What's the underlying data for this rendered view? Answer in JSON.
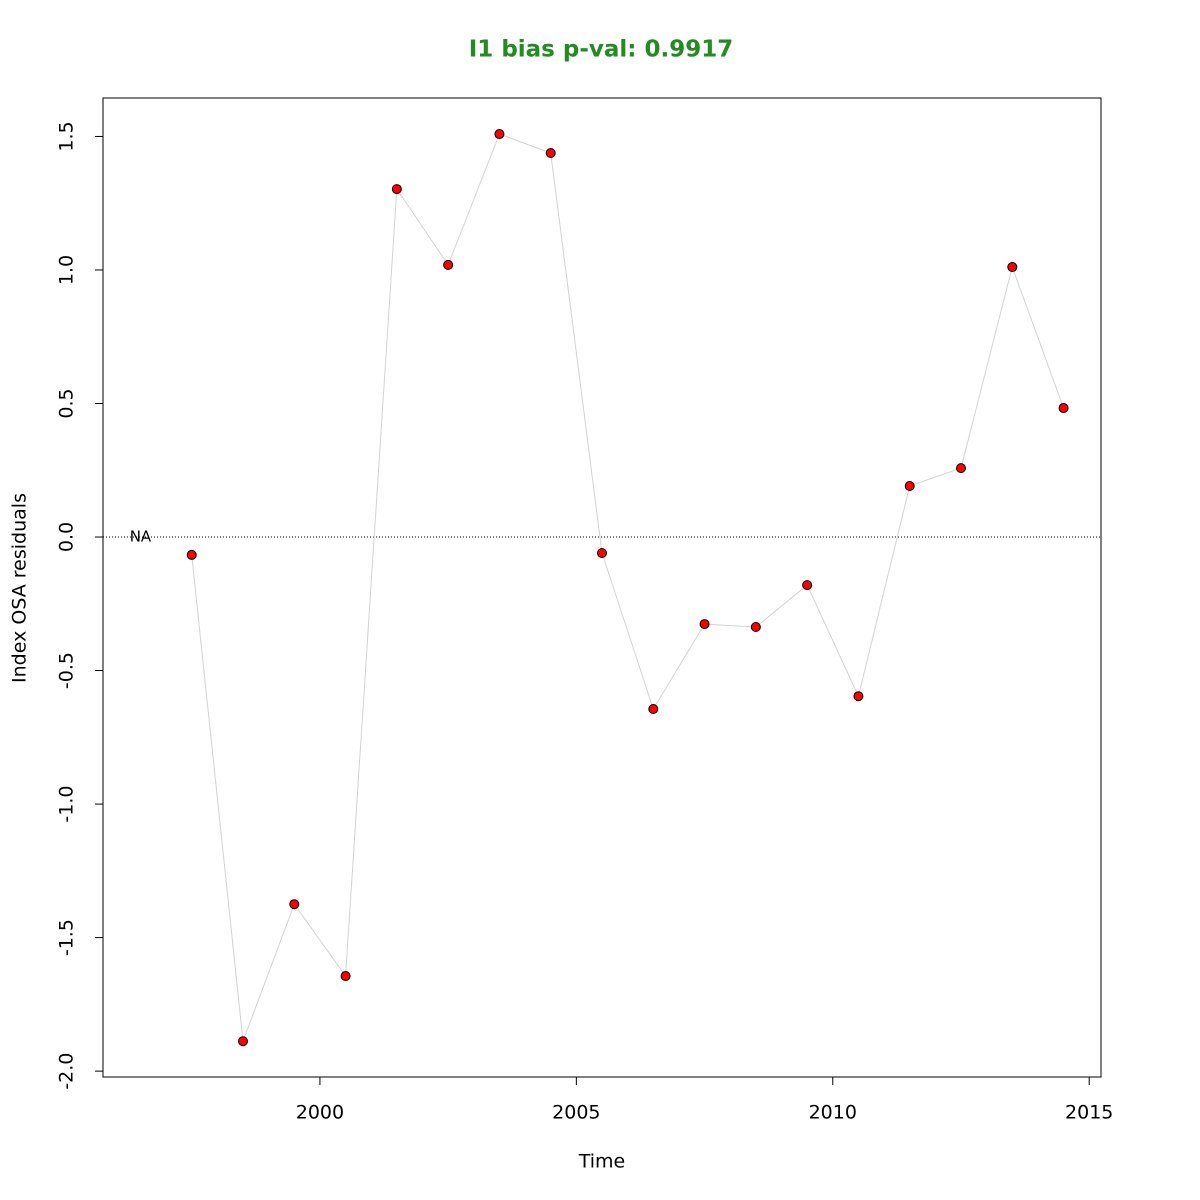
{
  "chart_data": {
    "type": "line",
    "title": "I1 bias p-val: 0.9917",
    "title_color": "#228b22",
    "x_label": "Time",
    "y_label": "Index OSA residuals",
    "x": [
      1996.5,
      1997.5,
      1998.5,
      1999.5,
      2000.5,
      2001.5,
      2002.5,
      2003.5,
      2004.5,
      2005.5,
      2006.5,
      2007.5,
      2008.5,
      2009.5,
      2010.5,
      2011.5,
      2012.5,
      2013.5,
      2014.5
    ],
    "series": [
      {
        "color": "#ff0000",
        "line_color": "#d3d3d3",
        "values": [
          null,
          -0.067,
          -1.888,
          -1.375,
          -1.644,
          1.303,
          1.019,
          1.509,
          1.438,
          -0.06,
          -0.644,
          -0.326,
          -0.337,
          -0.18,
          -0.596,
          0.191,
          0.258,
          1.011,
          0.483
        ]
      }
    ],
    "annotations": [
      {
        "text": "NA",
        "x": 1996.5,
        "y": 0
      }
    ],
    "hline": 0,
    "xlim": [
      1995.77,
      2015.23
    ],
    "ylim": [
      -2.022,
      1.644
    ],
    "xticks": [
      2000,
      2005,
      2010,
      2015
    ],
    "yticks": [
      {
        "value": -2,
        "label": "-2.0"
      },
      -1.5,
      {
        "value": -1,
        "label": "-1.0"
      },
      -0.5,
      {
        "value": 0,
        "label": "0.0"
      },
      0.5,
      {
        "value": 1,
        "label": "1.0"
      },
      1.5
    ]
  }
}
